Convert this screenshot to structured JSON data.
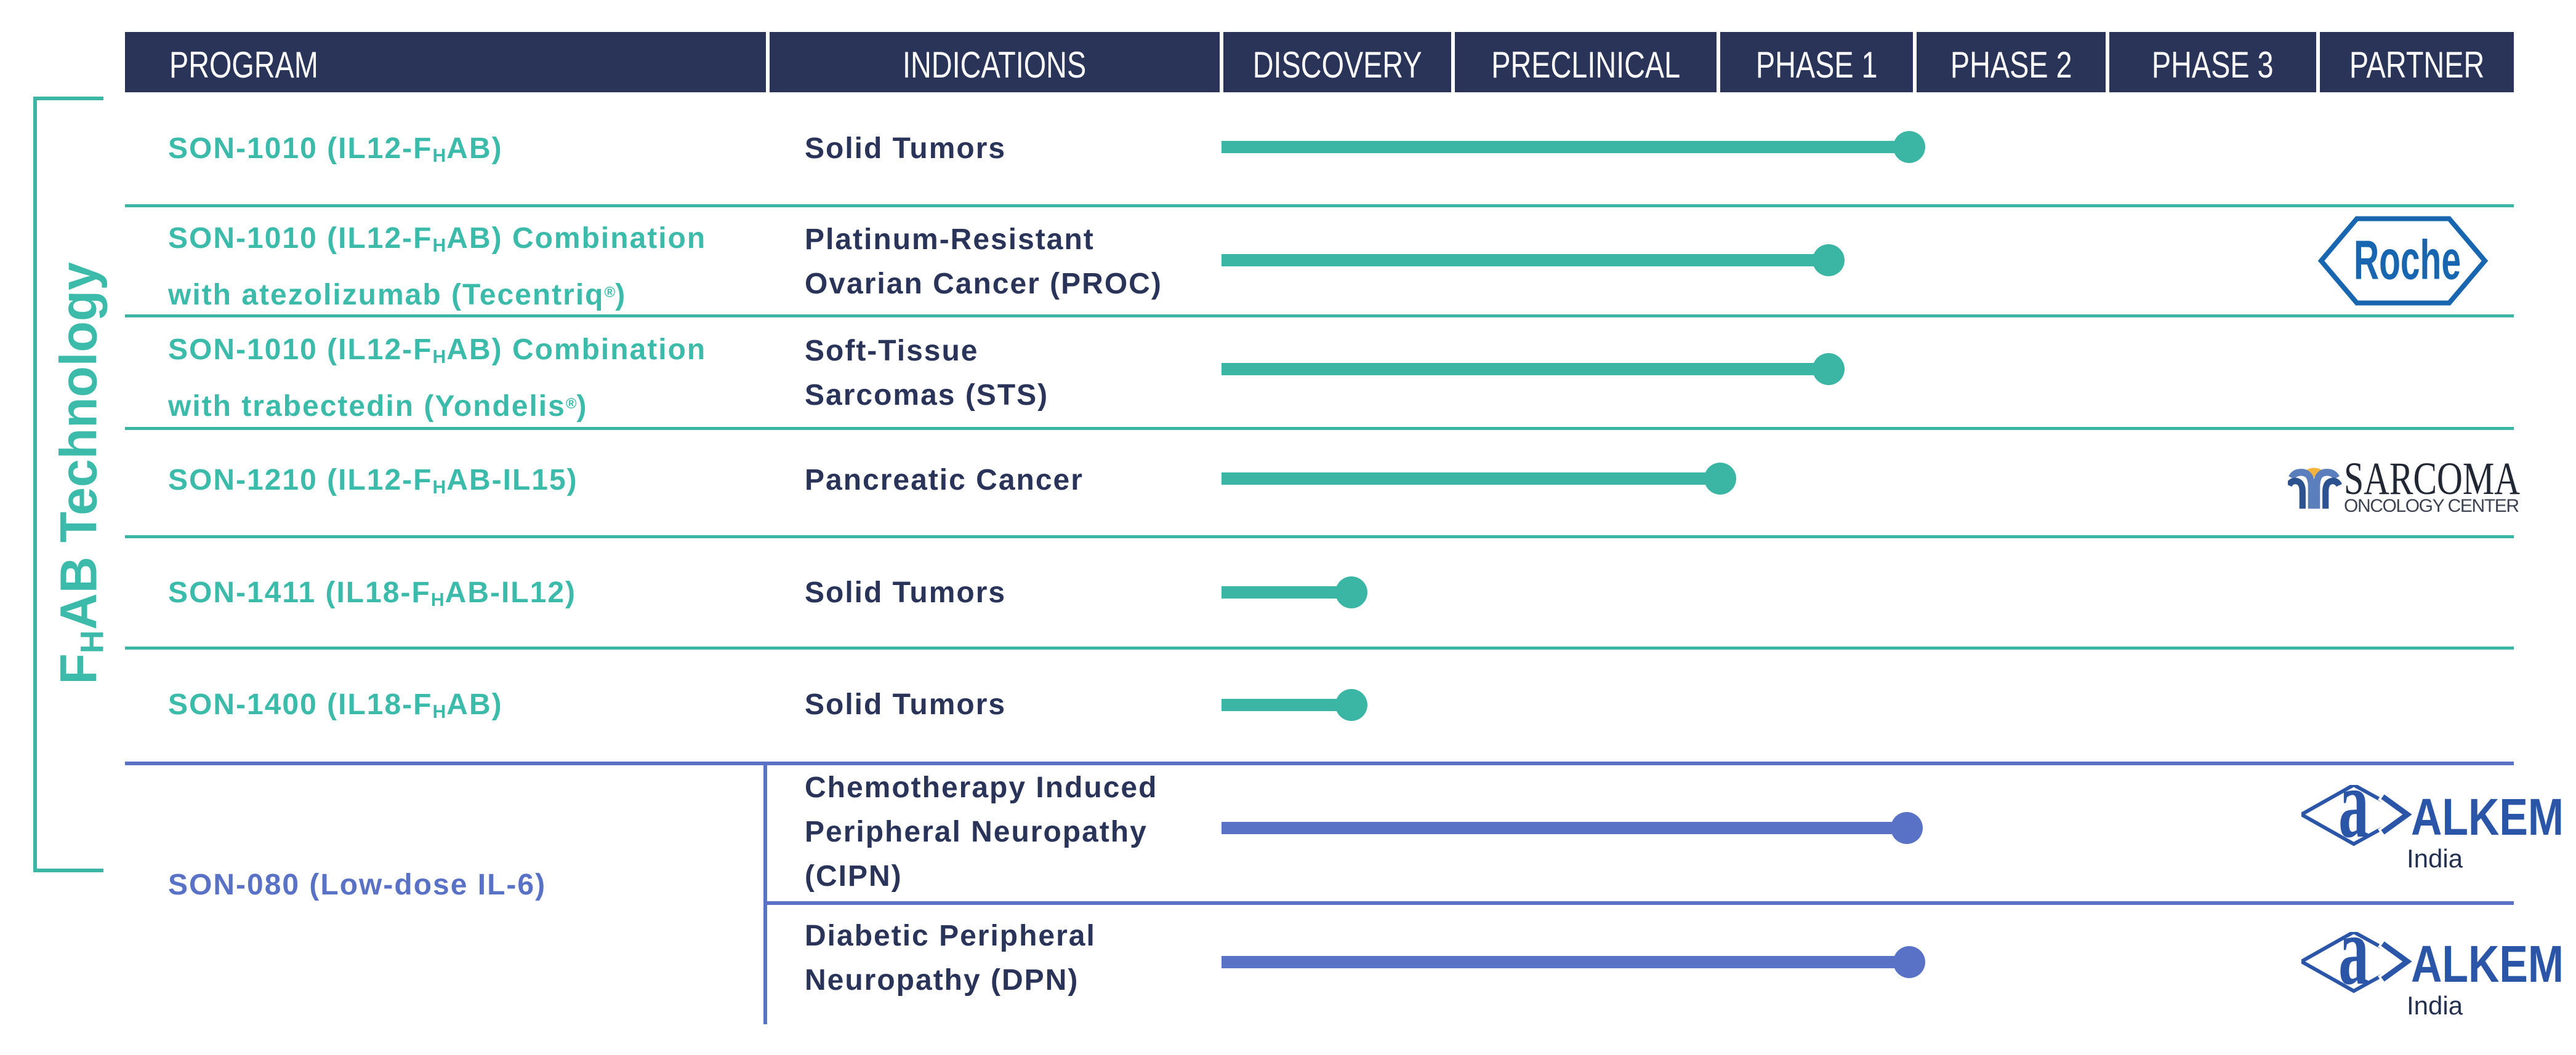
{
  "header": {
    "columns": [
      "PROGRAM",
      "INDICATIONS",
      "DISCOVERY",
      "PRECLINICAL",
      "PHASE 1",
      "PHASE 2",
      "PHASE 3",
      "PARTNER"
    ]
  },
  "group_bracket_label": "F{_H}AB Technology",
  "chart_data": {
    "type": "table",
    "stage_columns": [
      "DISCOVERY",
      "PRECLINICAL",
      "PHASE 1",
      "PHASE 2",
      "PHASE 3"
    ],
    "progress_scale_note": "progress measured in stage units, 0 = start of Discovery, 5 = end of Phase 3",
    "rows": [
      {
        "program": "SON-1010 (IL12-F{_H}AB)",
        "indication": "Solid Tumors",
        "progress": 2.98,
        "color": "teal",
        "partner": null,
        "group": "fhab"
      },
      {
        "program": "SON-1010 (IL12-F{_H}AB) Combination\nwith atezolizumab (Tecentriq{^®})",
        "indication": "Platinum-Resistant\nOvarian Cancer (PROC)",
        "progress": 2.57,
        "color": "teal",
        "partner": "roche",
        "group": "fhab"
      },
      {
        "program": "SON-1010 (IL12-F{_H}AB) Combination\nwith trabectedin (Yondelis{^®})",
        "indication": "Soft-Tissue\nSarcomas (STS)",
        "progress": 2.57,
        "color": "teal",
        "partner": null,
        "group": "fhab"
      },
      {
        "program": "SON-1210 (IL12-F{_H}AB-IL15)",
        "indication": "Pancreatic Cancer",
        "progress": 2.02,
        "color": "teal",
        "partner": "sarcoma",
        "group": "fhab"
      },
      {
        "program": "SON-1411 (IL18-F{_H}AB-IL12)",
        "indication": "Solid Tumors",
        "progress": 0.57,
        "color": "teal",
        "partner": null,
        "group": "fhab"
      },
      {
        "program": "SON-1400 (IL18-F{_H}AB)",
        "indication": "Solid Tumors",
        "progress": 0.57,
        "color": "teal",
        "partner": null,
        "group": "fhab"
      },
      {
        "program": "SON-080 (Low-dose IL-6)",
        "indication": "Chemotherapy Induced\nPeripheral Neuropathy\n(CIPN)",
        "progress": 2.97,
        "color": "blue",
        "partner": "alkem",
        "group": "son080"
      },
      {
        "program": "SON-080 (Low-dose IL-6)",
        "indication": "Diabetic Peripheral\nNeuropathy (DPN)",
        "progress": 2.98,
        "color": "blue",
        "partner": "alkem",
        "group": "son080"
      }
    ]
  },
  "partners": {
    "roche": {
      "name": "Roche"
    },
    "sarcoma": {
      "name": "SARCOMA",
      "subtitle": "ONCOLOGY CENTER"
    },
    "alkem": {
      "name": "ALKEM",
      "subtitle": "India",
      "monogram": "a"
    }
  },
  "colors": {
    "navy": "#2A3458",
    "teal": "#3BB5A4",
    "teal_text": "#3DBBAA",
    "periwinkle": "#5A72C5",
    "white": "#FFFFFF",
    "roche_blue": "#1766AF",
    "alkem_blue": "#2B56A8",
    "alkem_navy": "#23304F",
    "sarcoma_dark": "#222734",
    "sarcoma_gray": "#3C4250",
    "sarcoma_gold": "#F4B33C",
    "sarcoma_light_blue": "#5B7EBC",
    "sarcoma_dark_blue": "#2C538F"
  }
}
